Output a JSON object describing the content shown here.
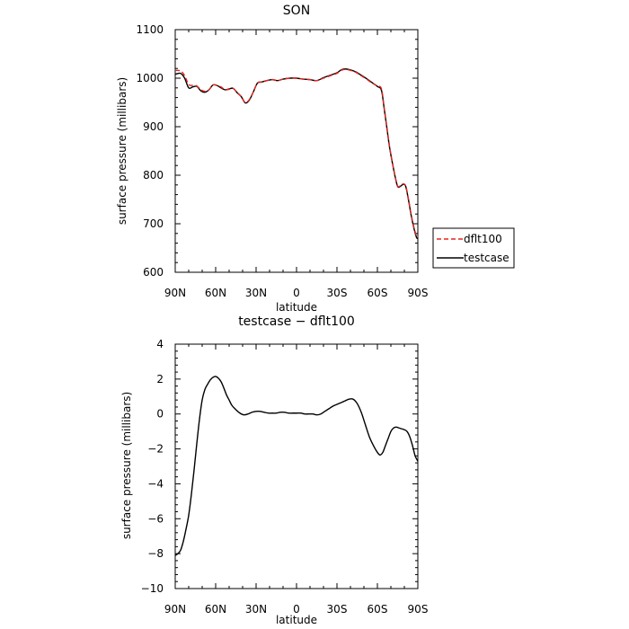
{
  "chart_data": [
    {
      "type": "line",
      "title": "SON",
      "xlabel": "latitude",
      "ylabel": "surface pressure (millibars)",
      "xlim": [
        90,
        -90
      ],
      "ylim": [
        600,
        1100
      ],
      "xticks": [
        90,
        60,
        30,
        0,
        -30,
        -60,
        -90
      ],
      "xtick_labels": [
        "90N",
        "60N",
        "30N",
        "0",
        "30S",
        "60S",
        "90S"
      ],
      "yticks": [
        600,
        700,
        800,
        900,
        1000,
        1100
      ],
      "ytick_labels": [
        "600",
        "700",
        "800",
        "900",
        "1000",
        "1100"
      ],
      "grid": false,
      "legend_position": "outside-right",
      "series": [
        {
          "name": "dflt100",
          "color": "#e8231c",
          "dash": "dashed",
          "x": [
            90,
            86,
            83,
            80,
            77,
            74,
            71,
            68,
            65,
            62,
            59,
            56,
            53,
            50,
            47,
            44,
            41,
            38,
            35,
            32,
            29,
            26,
            22,
            18,
            14,
            10,
            5,
            0,
            -5,
            -10,
            -15,
            -20,
            -25,
            -30,
            -33,
            -36,
            -40,
            -44,
            -48,
            -52,
            -56,
            -60,
            -63,
            -65,
            -67,
            -69,
            -71,
            -73,
            -75,
            -77,
            -79,
            -81,
            -83,
            -85,
            -87,
            -89,
            -90
          ],
          "y": [
            1016,
            1015,
            1005,
            987,
            985,
            984,
            976,
            973,
            976,
            986,
            985,
            982,
            976,
            977,
            979,
            970,
            962,
            950,
            956,
            972,
            990,
            992,
            995,
            997,
            995,
            998,
            1000,
            1000,
            998,
            997,
            995,
            1000,
            1005,
            1010,
            1016,
            1018,
            1016,
            1012,
            1005,
            998,
            990,
            984,
            978,
            940,
            900,
            860,
            828,
            800,
            778,
            778,
            782,
            778,
            752,
            720,
            694,
            675,
            672
          ]
        },
        {
          "name": "testcase",
          "color": "#000000",
          "dash": "solid",
          "x": [
            90,
            86,
            83,
            80,
            77,
            74,
            71,
            68,
            65,
            62,
            59,
            56,
            53,
            50,
            47,
            44,
            41,
            38,
            35,
            32,
            29,
            26,
            22,
            18,
            14,
            10,
            5,
            0,
            -5,
            -10,
            -15,
            -20,
            -25,
            -30,
            -33,
            -36,
            -40,
            -44,
            -48,
            -52,
            -56,
            -60,
            -63,
            -65,
            -67,
            -69,
            -71,
            -73,
            -75,
            -77,
            -79,
            -81,
            -83,
            -85,
            -87,
            -89,
            -90
          ],
          "y": [
            1008,
            1010,
            1000,
            980,
            982,
            983,
            974,
            971,
            976,
            986,
            985,
            980,
            976,
            978,
            979,
            970,
            962,
            949,
            955,
            972,
            990,
            992,
            995,
            997,
            995,
            998,
            1000,
            1000,
            998,
            997,
            995,
            1001,
            1006,
            1011,
            1017,
            1019,
            1017,
            1013,
            1006,
            999,
            991,
            983,
            975,
            938,
            898,
            858,
            827,
            799,
            777,
            777,
            781,
            777,
            750,
            718,
            692,
            672,
            670
          ]
        }
      ]
    },
    {
      "type": "line",
      "title": "testcase − dflt100",
      "xlabel": "latitude",
      "ylabel": "surface pressure (millibars)",
      "xlim": [
        90,
        -90
      ],
      "ylim": [
        -10,
        4
      ],
      "xticks": [
        90,
        60,
        30,
        0,
        -30,
        -60,
        -90
      ],
      "xtick_labels": [
        "90N",
        "60N",
        "30N",
        "0",
        "30S",
        "60S",
        "90S"
      ],
      "yticks": [
        -10,
        -8,
        -6,
        -4,
        -2,
        0,
        2,
        4
      ],
      "ytick_labels": [
        "−10",
        "−8",
        "−6",
        "−4",
        "−2",
        "0",
        "2",
        "4"
      ],
      "grid": false,
      "series": [
        {
          "color": "#000000",
          "dash": "solid",
          "x": [
            90,
            88,
            86,
            84,
            82,
            80,
            78,
            76,
            74,
            72,
            70,
            68,
            66,
            64,
            62,
            60,
            58,
            56,
            54,
            52,
            50,
            48,
            45,
            42,
            39,
            36,
            33,
            30,
            27,
            24,
            21,
            18,
            15,
            12,
            9,
            6,
            3,
            0,
            -3,
            -6,
            -9,
            -12,
            -15,
            -18,
            -21,
            -24,
            -27,
            -30,
            -33,
            -36,
            -39,
            -42,
            -45,
            -48,
            -51,
            -54,
            -57,
            -60,
            -62,
            -64,
            -66,
            -68,
            -70,
            -72,
            -74,
            -76,
            -78,
            -80,
            -82,
            -84,
            -86,
            -88,
            -90
          ],
          "y": [
            -8.1,
            -8.0,
            -7.8,
            -7.3,
            -6.6,
            -5.8,
            -4.6,
            -3.2,
            -1.7,
            -0.3,
            0.8,
            1.4,
            1.7,
            1.95,
            2.1,
            2.15,
            2.05,
            1.85,
            1.5,
            1.1,
            0.8,
            0.5,
            0.25,
            0.05,
            -0.05,
            0.0,
            0.1,
            0.15,
            0.15,
            0.1,
            0.05,
            0.05,
            0.05,
            0.1,
            0.1,
            0.05,
            0.05,
            0.05,
            0.05,
            0.0,
            0.0,
            0.0,
            -0.05,
            0.0,
            0.15,
            0.3,
            0.45,
            0.55,
            0.65,
            0.75,
            0.85,
            0.85,
            0.6,
            0.1,
            -0.6,
            -1.3,
            -1.8,
            -2.2,
            -2.35,
            -2.2,
            -1.8,
            -1.4,
            -1.0,
            -0.8,
            -0.75,
            -0.8,
            -0.85,
            -0.9,
            -1.0,
            -1.3,
            -1.8,
            -2.4,
            -2.7
          ]
        }
      ]
    }
  ]
}
